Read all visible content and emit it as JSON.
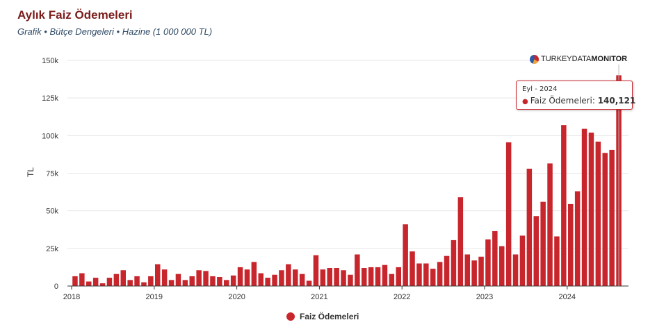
{
  "title": "Aylık Faiz Ödemeleri",
  "subtitle": "Grafik • Bütçe Dengeleri • Hazine (1 000 000 TL)",
  "logo": {
    "part1": "TURKEY",
    "part2": "DATA",
    "part3": "MONITOR"
  },
  "tooltip": {
    "header": "Eyl - 2024",
    "series": "Faiz Ödemeleri",
    "value": "140,121"
  },
  "colors": {
    "bar": "#c8262d",
    "grid": "#e6e6e6",
    "axis": "#333333"
  },
  "chart_data": {
    "type": "bar",
    "ylabel": "TL",
    "ylim": [
      0,
      150000
    ],
    "y_ticks": [
      0,
      25000,
      50000,
      75000,
      100000,
      125000,
      150000
    ],
    "y_tick_labels": [
      "0",
      "25k",
      "50k",
      "75k",
      "100k",
      "125k",
      "150k"
    ],
    "x_tick_labels": [
      "2018",
      "2019",
      "2020",
      "2021",
      "2022",
      "2023",
      "2024"
    ],
    "x_start": "2018-01",
    "legend": "bottom-center",
    "grid": true,
    "series": [
      {
        "name": "Faiz Ödemeleri",
        "values": [
          6500,
          8500,
          3000,
          5500,
          1800,
          5500,
          8000,
          10500,
          4000,
          6500,
          2500,
          6500,
          14500,
          11000,
          4000,
          8000,
          4000,
          6500,
          10500,
          10000,
          6500,
          6000,
          4000,
          7000,
          12500,
          11000,
          16000,
          8500,
          5500,
          7500,
          10500,
          14500,
          11000,
          8000,
          3500,
          20500,
          11000,
          12000,
          12000,
          10500,
          7500,
          21000,
          12000,
          12500,
          12500,
          14000,
          8000,
          12500,
          41000,
          23000,
          15000,
          15000,
          11500,
          16000,
          20000,
          30500,
          59000,
          21000,
          17000,
          19500,
          31000,
          36500,
          26500,
          95500,
          21000,
          33500,
          78000,
          46500,
          56000,
          81500,
          33000,
          107000,
          54500,
          63000,
          104500,
          102000,
          96000,
          88500,
          90500,
          140121
        ]
      }
    ]
  }
}
